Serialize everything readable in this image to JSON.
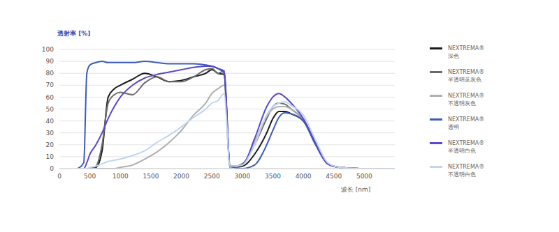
{
  "chart_data": {
    "type": "line",
    "x_label": "波长 [nm]",
    "y_label": "透射率 [%]",
    "x": [
      300,
      400,
      450,
      500,
      600,
      700,
      800,
      900,
      1000,
      1200,
      1400,
      1600,
      1800,
      2000,
      2200,
      2400,
      2500,
      2600,
      2700,
      2800,
      3000,
      3200,
      3400,
      3500,
      3600,
      3700,
      3800,
      4000,
      4200,
      4400,
      4600,
      5000,
      5500
    ],
    "xlim": [
      0,
      5500
    ],
    "xticks": [
      0,
      500,
      1000,
      1500,
      2000,
      2500,
      3000,
      3500,
      4000,
      4500,
      5000
    ],
    "ylim": [
      0,
      100
    ],
    "yticks": [
      0,
      10,
      20,
      30,
      40,
      50,
      60,
      70,
      80,
      90,
      100
    ],
    "grid": true,
    "legend": "right",
    "series": [
      {
        "name": "NEXTREMA® 深色",
        "color": "#1a1a1a",
        "values": [
          0,
          0,
          0,
          0,
          1,
          15,
          60,
          67,
          70,
          75,
          80,
          77,
          73,
          74,
          77,
          80,
          83,
          80,
          79,
          1,
          2,
          12,
          30,
          42,
          48,
          48,
          46,
          40,
          22,
          4,
          1,
          0,
          0
        ]
      },
      {
        "name": "NEXTREMA® 半透明蓝灰色",
        "color": "#6b6b6b",
        "values": [
          0,
          0,
          0,
          0,
          2,
          20,
          55,
          62,
          64,
          62,
          72,
          77,
          73,
          73,
          77,
          83,
          84,
          80,
          82,
          1,
          4,
          20,
          42,
          52,
          55,
          54,
          50,
          41,
          22,
          4,
          1,
          0,
          0
        ]
      },
      {
        "name": "NEXTREMA® 不透明灰色",
        "color": "#b0b0b0",
        "values": [
          0,
          0,
          0,
          0,
          0,
          0,
          0,
          0,
          1,
          3,
          8,
          14,
          22,
          32,
          45,
          55,
          63,
          67,
          70,
          1,
          3,
          22,
          44,
          50,
          52,
          52,
          50,
          41,
          22,
          4,
          1,
          0,
          0
        ]
      },
      {
        "name": "NEXTREMA® 透明",
        "color": "#3d5cb5",
        "values": [
          0,
          5,
          80,
          87,
          89,
          90,
          89,
          89,
          89,
          89,
          90,
          89,
          88,
          88,
          88,
          87,
          86,
          84,
          80,
          2,
          0,
          3,
          20,
          32,
          43,
          47,
          46,
          40,
          20,
          4,
          1,
          0,
          0
        ]
      },
      {
        "name": "NEXTREMA® 半透明白色",
        "color": "#5a48c9",
        "values": [
          0,
          0,
          5,
          12,
          20,
          30,
          42,
          52,
          60,
          70,
          76,
          79,
          81,
          83,
          85,
          86,
          86,
          84,
          82,
          2,
          3,
          25,
          52,
          60,
          63,
          60,
          55,
          42,
          22,
          4,
          1,
          0,
          0
        ]
      },
      {
        "name": "NEXTREMA® 不透明白色",
        "color": "#c0d6ef",
        "values": [
          0,
          0,
          0,
          1,
          2,
          4,
          6,
          7,
          8,
          11,
          15,
          22,
          28,
          35,
          43,
          50,
          55,
          57,
          63,
          2,
          3,
          20,
          45,
          52,
          55,
          56,
          53,
          45,
          24,
          5,
          1,
          0,
          0
        ]
      }
    ]
  }
}
